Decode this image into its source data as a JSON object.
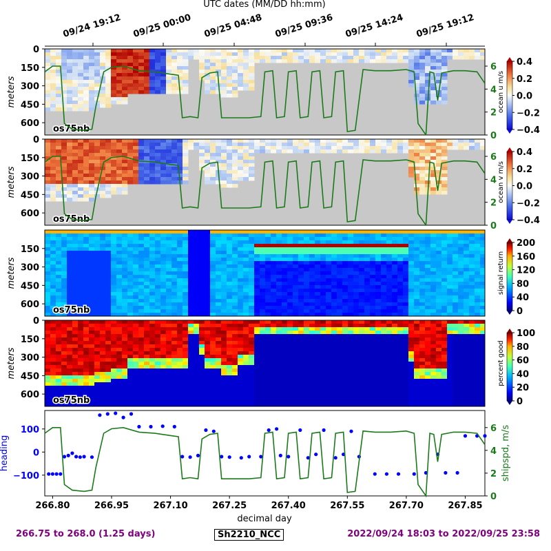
{
  "header": {
    "title": "UTC dates (MM/DD hh:mm)",
    "date_ticks": [
      "09/24 19:12",
      "09/25 00:00",
      "09/25 04:48",
      "09/25 09:36",
      "09/25 14:24",
      "09/25 19:12"
    ]
  },
  "footer": {
    "range": "266.75 to 268.0 (1.25 days)",
    "cruise": "Sh2210_NCC",
    "utc_range": "2022/09/24 18:03 to 2022/09/25 23:58"
  },
  "colors": {
    "ship_speed": "#1a7a1a",
    "heading": "#0000ff",
    "no_data": "#c8c8c8",
    "footer_text": "#800080"
  },
  "chart_data": [
    {
      "type": "heatmap",
      "panel": "ocean-u",
      "ylabel": "meters",
      "yticks": [
        0,
        150,
        300,
        450,
        600
      ],
      "ylim": [
        700,
        0
      ],
      "instrument_label": "os75nb",
      "colorbar_label": "ocean u m/s",
      "colorbar_ticks": [
        "0.4",
        "0.2",
        "0.0",
        "−0.2",
        "−0.4"
      ],
      "colorbar_range": [
        -0.4,
        0.4
      ],
      "colormap": "bwr",
      "right_axis_ticks": [
        "6",
        "4",
        "2",
        "0"
      ],
      "right_axis_range": [
        0,
        7.5
      ]
    },
    {
      "type": "heatmap",
      "panel": "ocean-v",
      "ylabel": "meters",
      "yticks": [
        0,
        150,
        300,
        450,
        600
      ],
      "ylim": [
        700,
        0
      ],
      "instrument_label": "os75nb",
      "colorbar_label": "ocean v m/s",
      "colorbar_ticks": [
        "0.4",
        "0.2",
        "0.0",
        "−0.2",
        "−0.4"
      ],
      "colorbar_range": [
        -0.4,
        0.4
      ],
      "colormap": "bwr",
      "right_axis_ticks": [
        "6",
        "4",
        "2",
        "0"
      ],
      "right_axis_range": [
        0,
        7.5
      ]
    },
    {
      "type": "heatmap",
      "panel": "signal-return",
      "ylabel": "meters",
      "yticks": [
        150,
        300,
        450,
        600
      ],
      "ylim": [
        700,
        0
      ],
      "instrument_label": "os75nb",
      "colorbar_label": "signal return",
      "colorbar_ticks": [
        "200",
        "160",
        "120",
        "80",
        "40",
        "0"
      ],
      "colorbar_range": [
        0,
        200
      ],
      "colormap": "jet"
    },
    {
      "type": "heatmap",
      "panel": "percent-good",
      "ylabel": "meters",
      "yticks": [
        0,
        150,
        300,
        450,
        600
      ],
      "ylim": [
        700,
        0
      ],
      "instrument_label": "os75nb",
      "colorbar_label": "percent good",
      "colorbar_ticks": [
        "100",
        "80",
        "60",
        "40",
        "20",
        "0"
      ],
      "colorbar_range": [
        0,
        100
      ],
      "colormap": "jet"
    },
    {
      "type": "scatter",
      "panel": "heading-speed",
      "xlabel": "decimal day",
      "xticks": [
        "266.80",
        "266.95",
        "267.10",
        "267.25",
        "267.40",
        "267.55",
        "267.70",
        "267.85"
      ],
      "xlim": [
        266.78,
        267.9
      ],
      "ylabel": "heading",
      "yticks": [
        "100",
        "0",
        "−100"
      ],
      "ylim": [
        -190,
        180
      ],
      "right_label": "shipspd, m/s",
      "right_ticks": [
        "6",
        "4",
        "2",
        "0"
      ],
      "right_range": [
        0,
        7.5
      ],
      "series": [
        {
          "name": "heading",
          "style": "dots",
          "points": [
            [
              266.79,
              -95
            ],
            [
              266.8,
              -95
            ],
            [
              266.81,
              -95
            ],
            [
              266.82,
              -95
            ],
            [
              266.83,
              -20
            ],
            [
              266.84,
              -15
            ],
            [
              266.85,
              -5
            ],
            [
              266.86,
              -20
            ],
            [
              266.87,
              -22
            ],
            [
              266.88,
              -20
            ],
            [
              266.9,
              -22
            ],
            [
              266.92,
              160
            ],
            [
              266.94,
              165
            ],
            [
              266.96,
              168
            ],
            [
              266.98,
              150
            ],
            [
              267.0,
              165
            ],
            [
              267.02,
              110
            ],
            [
              267.05,
              110
            ],
            [
              267.08,
              112
            ],
            [
              267.11,
              110
            ],
            [
              267.13,
              -20
            ],
            [
              267.15,
              -22
            ],
            [
              267.17,
              -15
            ],
            [
              267.19,
              95
            ],
            [
              267.21,
              90
            ],
            [
              267.23,
              -20
            ],
            [
              267.25,
              -22
            ],
            [
              267.28,
              -25
            ],
            [
              267.3,
              -20
            ],
            [
              267.33,
              -20
            ],
            [
              267.35,
              95
            ],
            [
              267.37,
              100
            ],
            [
              267.38,
              -15
            ],
            [
              267.4,
              -20
            ],
            [
              267.43,
              95
            ],
            [
              267.45,
              -25
            ],
            [
              267.47,
              -10
            ],
            [
              267.49,
              95
            ],
            [
              267.52,
              -25
            ],
            [
              267.54,
              -10
            ],
            [
              267.56,
              90
            ],
            [
              267.58,
              -20
            ],
            [
              267.62,
              -95
            ],
            [
              267.65,
              -95
            ],
            [
              267.68,
              -95
            ],
            [
              267.72,
              -95
            ],
            [
              267.75,
              -90
            ],
            [
              267.78,
              -10
            ],
            [
              267.8,
              -90
            ],
            [
              267.83,
              -90
            ],
            [
              267.85,
              70
            ],
            [
              267.88,
              70
            ],
            [
              267.9,
              70
            ]
          ]
        },
        {
          "name": "shipspd",
          "style": "line",
          "points": [
            [
              266.78,
              5.5
            ],
            [
              266.8,
              6
            ],
            [
              266.82,
              6
            ],
            [
              266.83,
              1
            ],
            [
              266.85,
              0.5
            ],
            [
              266.88,
              0.4
            ],
            [
              266.9,
              0.5
            ],
            [
              266.91,
              2.5
            ],
            [
              266.93,
              5.5
            ],
            [
              266.95,
              5.9
            ],
            [
              266.98,
              6
            ],
            [
              267.02,
              5.6
            ],
            [
              267.06,
              5.5
            ],
            [
              267.1,
              5.3
            ],
            [
              267.12,
              5.2
            ],
            [
              267.13,
              1.5
            ],
            [
              267.15,
              1.6
            ],
            [
              267.17,
              1.5
            ],
            [
              267.18,
              5
            ],
            [
              267.2,
              5.4
            ],
            [
              267.22,
              5.5
            ],
            [
              267.23,
              1.5
            ],
            [
              267.26,
              1.5
            ],
            [
              267.3,
              1.5
            ],
            [
              267.33,
              1.6
            ],
            [
              267.34,
              5.5
            ],
            [
              267.36,
              5.6
            ],
            [
              267.37,
              1.5
            ],
            [
              267.39,
              1.6
            ],
            [
              267.4,
              5.5
            ],
            [
              267.42,
              5.6
            ],
            [
              267.43,
              1.5
            ],
            [
              267.45,
              1.6
            ],
            [
              267.46,
              5.5
            ],
            [
              267.48,
              5.6
            ],
            [
              267.49,
              1.5
            ],
            [
              267.51,
              1.6
            ],
            [
              267.52,
              5.5
            ],
            [
              267.54,
              5.6
            ],
            [
              267.55,
              0.3
            ],
            [
              267.57,
              0.4
            ],
            [
              267.59,
              5.7
            ],
            [
              267.62,
              5.6
            ],
            [
              267.66,
              5.6
            ],
            [
              267.7,
              5.7
            ],
            [
              267.72,
              5.5
            ],
            [
              267.73,
              1
            ],
            [
              267.75,
              0
            ],
            [
              267.76,
              5.5
            ],
            [
              267.77,
              5.4
            ],
            [
              267.78,
              3
            ],
            [
              267.79,
              5.4
            ],
            [
              267.82,
              5.6
            ],
            [
              267.85,
              5.6
            ],
            [
              267.88,
              5.5
            ],
            [
              267.9,
              4.5
            ]
          ]
        }
      ]
    }
  ]
}
